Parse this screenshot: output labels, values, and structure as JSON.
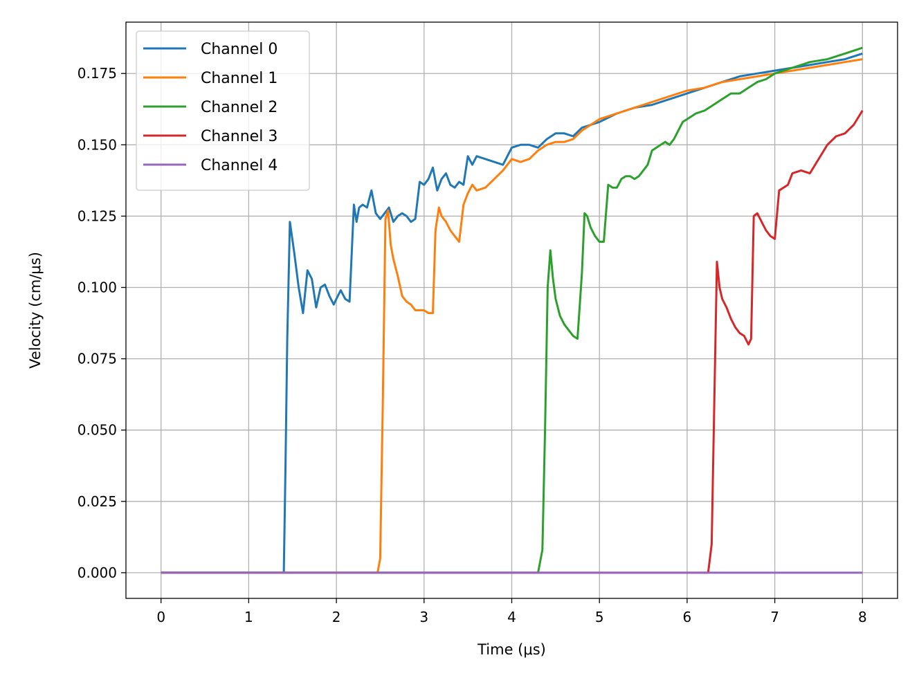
{
  "chart_data": {
    "type": "line",
    "xlabel": "Time (μs)",
    "ylabel": "Velocity (cm/μs)",
    "xlim": [
      -0.4,
      8.4
    ],
    "ylim": [
      -0.009,
      0.193
    ],
    "xticks": [
      0,
      1,
      2,
      3,
      4,
      5,
      6,
      7,
      8
    ],
    "xtick_labels": [
      "0",
      "1",
      "2",
      "3",
      "4",
      "5",
      "6",
      "7",
      "8"
    ],
    "yticks": [
      0,
      0.025,
      0.05,
      0.075,
      0.1,
      0.125,
      0.15,
      0.175
    ],
    "ytick_labels": [
      "0.000",
      "0.025",
      "0.050",
      "0.075",
      "0.100",
      "0.125",
      "0.150",
      "0.175"
    ],
    "grid": true,
    "legend_position": "top-left",
    "series": [
      {
        "name": "Channel 0",
        "color": "#1f77b4",
        "x": [
          0,
          0.5,
          1.0,
          1.4,
          1.42,
          1.44,
          1.47,
          1.52,
          1.57,
          1.62,
          1.67,
          1.72,
          1.77,
          1.82,
          1.87,
          1.92,
          1.97,
          2.0,
          2.05,
          2.1,
          2.15,
          2.2,
          2.23,
          2.26,
          2.3,
          2.35,
          2.4,
          2.45,
          2.5,
          2.55,
          2.6,
          2.65,
          2.7,
          2.75,
          2.8,
          2.85,
          2.9,
          2.95,
          3.0,
          3.05,
          3.1,
          3.15,
          3.2,
          3.25,
          3.3,
          3.35,
          3.4,
          3.45,
          3.5,
          3.55,
          3.6,
          3.7,
          3.8,
          3.9,
          4.0,
          4.1,
          4.2,
          4.3,
          4.4,
          4.5,
          4.6,
          4.7,
          4.8,
          4.9,
          5.0,
          5.2,
          5.4,
          5.6,
          5.8,
          6.0,
          6.2,
          6.4,
          6.6,
          6.8,
          7.0,
          7.2,
          7.4,
          7.6,
          7.8,
          8.0
        ],
        "y": [
          0,
          0,
          0,
          0,
          0.038,
          0.082,
          0.123,
          0.112,
          0.1,
          0.091,
          0.106,
          0.103,
          0.093,
          0.1,
          0.101,
          0.097,
          0.094,
          0.096,
          0.099,
          0.096,
          0.095,
          0.129,
          0.123,
          0.128,
          0.129,
          0.128,
          0.134,
          0.126,
          0.124,
          0.126,
          0.128,
          0.123,
          0.125,
          0.126,
          0.125,
          0.123,
          0.124,
          0.137,
          0.136,
          0.138,
          0.142,
          0.134,
          0.138,
          0.14,
          0.136,
          0.135,
          0.137,
          0.136,
          0.146,
          0.143,
          0.146,
          0.145,
          0.144,
          0.143,
          0.149,
          0.15,
          0.15,
          0.149,
          0.152,
          0.154,
          0.154,
          0.153,
          0.156,
          0.157,
          0.158,
          0.161,
          0.163,
          0.164,
          0.166,
          0.168,
          0.17,
          0.172,
          0.174,
          0.175,
          0.176,
          0.177,
          0.178,
          0.179,
          0.18,
          0.182
        ]
      },
      {
        "name": "Channel 1",
        "color": "#ff7f0e",
        "x": [
          0,
          0.5,
          1.0,
          1.5,
          2.0,
          2.47,
          2.5,
          2.53,
          2.56,
          2.59,
          2.62,
          2.65,
          2.7,
          2.75,
          2.8,
          2.85,
          2.9,
          2.95,
          3.0,
          3.05,
          3.1,
          3.13,
          3.17,
          3.2,
          3.25,
          3.3,
          3.35,
          3.4,
          3.45,
          3.5,
          3.55,
          3.6,
          3.7,
          3.8,
          3.9,
          4.0,
          4.1,
          4.2,
          4.3,
          4.4,
          4.5,
          4.6,
          4.7,
          4.8,
          4.9,
          5.0,
          5.2,
          5.4,
          5.6,
          5.8,
          6.0,
          6.2,
          6.4,
          6.6,
          6.8,
          7.0,
          7.2,
          7.4,
          7.6,
          7.8,
          8.0
        ],
        "y": [
          0,
          0,
          0,
          0,
          0,
          0,
          0.005,
          0.06,
          0.124,
          0.127,
          0.115,
          0.11,
          0.104,
          0.097,
          0.095,
          0.094,
          0.092,
          0.092,
          0.092,
          0.091,
          0.091,
          0.12,
          0.128,
          0.125,
          0.123,
          0.12,
          0.118,
          0.116,
          0.129,
          0.133,
          0.136,
          0.134,
          0.135,
          0.138,
          0.141,
          0.145,
          0.144,
          0.145,
          0.148,
          0.15,
          0.151,
          0.151,
          0.152,
          0.155,
          0.157,
          0.159,
          0.161,
          0.163,
          0.165,
          0.167,
          0.169,
          0.17,
          0.172,
          0.173,
          0.174,
          0.175,
          0.176,
          0.177,
          0.178,
          0.179,
          0.18
        ]
      },
      {
        "name": "Channel 2",
        "color": "#2ca02c",
        "x": [
          0,
          1.0,
          2.0,
          3.0,
          4.0,
          4.3,
          4.35,
          4.38,
          4.41,
          4.44,
          4.47,
          4.5,
          4.55,
          4.6,
          4.65,
          4.7,
          4.75,
          4.8,
          4.83,
          4.86,
          4.9,
          4.95,
          5.0,
          5.05,
          5.1,
          5.15,
          5.2,
          5.25,
          5.3,
          5.35,
          5.4,
          5.45,
          5.5,
          5.55,
          5.6,
          5.65,
          5.7,
          5.75,
          5.8,
          5.85,
          5.9,
          5.95,
          6.0,
          6.1,
          6.2,
          6.3,
          6.4,
          6.5,
          6.6,
          6.7,
          6.8,
          6.9,
          7.0,
          7.2,
          7.4,
          7.6,
          7.8,
          8.0
        ],
        "y": [
          0,
          0,
          0,
          0,
          0,
          0,
          0.008,
          0.05,
          0.1,
          0.113,
          0.103,
          0.096,
          0.09,
          0.087,
          0.085,
          0.083,
          0.082,
          0.105,
          0.126,
          0.125,
          0.121,
          0.118,
          0.116,
          0.116,
          0.136,
          0.135,
          0.135,
          0.138,
          0.139,
          0.139,
          0.138,
          0.139,
          0.141,
          0.143,
          0.148,
          0.149,
          0.15,
          0.151,
          0.15,
          0.152,
          0.155,
          0.158,
          0.159,
          0.161,
          0.162,
          0.164,
          0.166,
          0.168,
          0.168,
          0.17,
          0.172,
          0.173,
          0.175,
          0.177,
          0.179,
          0.18,
          0.182,
          0.184
        ]
      },
      {
        "name": "Channel 3",
        "color": "#d62728",
        "x": [
          0,
          1.0,
          2.0,
          3.0,
          4.0,
          5.0,
          6.0,
          6.24,
          6.28,
          6.31,
          6.34,
          6.37,
          6.4,
          6.45,
          6.5,
          6.55,
          6.6,
          6.65,
          6.7,
          6.73,
          6.76,
          6.8,
          6.85,
          6.9,
          6.95,
          7.0,
          7.05,
          7.1,
          7.15,
          7.2,
          7.3,
          7.4,
          7.5,
          7.6,
          7.7,
          7.8,
          7.9,
          8.0
        ],
        "y": [
          0,
          0,
          0,
          0,
          0,
          0,
          0,
          0,
          0.01,
          0.06,
          0.109,
          0.1,
          0.096,
          0.093,
          0.089,
          0.086,
          0.084,
          0.083,
          0.08,
          0.082,
          0.125,
          0.126,
          0.123,
          0.12,
          0.118,
          0.117,
          0.134,
          0.135,
          0.136,
          0.14,
          0.141,
          0.14,
          0.145,
          0.15,
          0.153,
          0.154,
          0.157,
          0.162
        ]
      },
      {
        "name": "Channel 4",
        "color": "#9467bd",
        "x": [
          0,
          1,
          2,
          3,
          4,
          5,
          6,
          7,
          8
        ],
        "y": [
          0,
          0,
          0,
          0,
          0,
          0,
          0,
          0,
          0
        ]
      }
    ]
  }
}
